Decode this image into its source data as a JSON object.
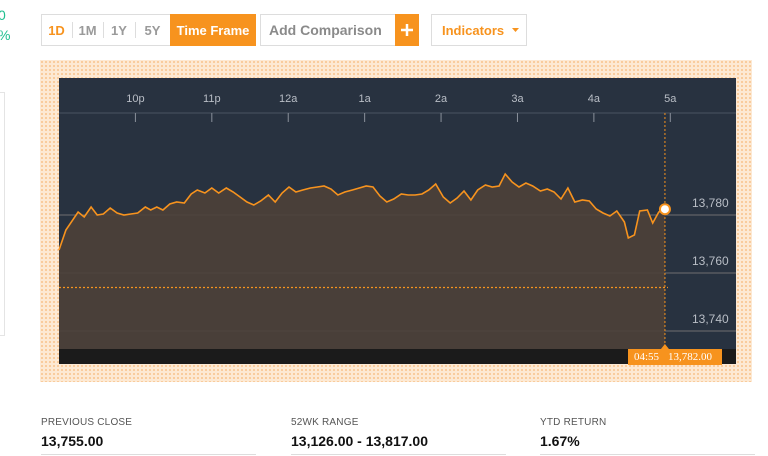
{
  "left_edge": [
    "0",
    "%"
  ],
  "toolbar": {
    "ranges": [
      "1D",
      "1M",
      "1Y",
      "5Y"
    ],
    "time_frame": "Time Frame",
    "comparison_placeholder": "Add Comparison",
    "indicators": "Indicators"
  },
  "chart_data": {
    "type": "area-line",
    "color": "#f7931e",
    "fill": "#4d4038",
    "grid": true,
    "x": [
      21.0,
      21.09,
      21.25,
      21.33,
      21.42,
      21.5,
      21.58,
      21.67,
      21.76,
      21.85,
      21.94,
      22.03,
      22.13,
      22.2,
      22.28,
      22.36,
      22.45,
      22.54,
      22.64,
      22.73,
      22.81,
      22.91,
      23.0,
      23.09,
      23.19,
      23.28,
      23.37,
      23.46,
      23.55,
      23.64,
      23.74,
      23.83,
      23.92,
      24.01,
      24.1,
      24.19,
      24.29,
      24.38,
      24.47,
      24.56,
      24.65,
      24.74,
      24.84,
      24.93,
      25.02,
      25.11,
      25.2,
      25.29,
      25.38,
      25.48,
      25.57,
      25.66,
      25.75,
      25.84,
      25.93,
      26.03,
      26.12,
      26.21,
      26.3,
      26.39,
      26.48,
      26.58,
      26.67,
      26.76,
      26.84,
      26.93,
      27.02,
      27.11,
      27.2,
      27.3,
      27.39,
      27.48,
      27.57,
      27.66,
      27.75,
      27.85,
      27.94,
      28.03,
      28.12,
      28.21,
      28.3,
      28.4,
      28.45,
      28.53,
      28.6,
      28.7,
      28.77,
      28.85,
      28.93
    ],
    "values": [
      13767.93,
      13774.83,
      13781.03,
      13779.31,
      13782.76,
      13780.0,
      13780.34,
      13782.41,
      13780.69,
      13780.0,
      13780.34,
      13780.69,
      13782.76,
      13781.72,
      13782.76,
      13781.72,
      13783.79,
      13784.48,
      13784.14,
      13787.24,
      13788.62,
      13787.59,
      13789.31,
      13787.59,
      13789.31,
      13787.93,
      13786.21,
      13784.48,
      13783.45,
      13784.83,
      13786.9,
      13784.48,
      13787.59,
      13789.66,
      13787.93,
      13788.62,
      13789.31,
      13789.66,
      13790.0,
      13788.97,
      13786.9,
      13787.93,
      13788.62,
      13789.31,
      13790.0,
      13789.66,
      13786.55,
      13784.48,
      13785.52,
      13787.24,
      13786.9,
      13786.9,
      13787.24,
      13788.62,
      13790.69,
      13786.21,
      13784.14,
      13785.86,
      13788.28,
      13785.17,
      13788.62,
      13790.34,
      13789.66,
      13790.0,
      13794.14,
      13791.38,
      13789.66,
      13791.03,
      13790.0,
      13788.28,
      13788.97,
      13787.93,
      13785.52,
      13789.31,
      13784.48,
      13785.17,
      13784.83,
      13782.07,
      13780.69,
      13779.66,
      13781.38,
      13777.59,
      13772.07,
      13773.1,
      13781.38,
      13781.72,
      13777.24,
      13781.03,
      13782
    ],
    "xlim": [
      21,
      29.86
    ],
    "xticks": [
      {
        "value": 22,
        "label": "10p"
      },
      {
        "value": 23,
        "label": "11p"
      },
      {
        "value": 24,
        "label": "12a"
      },
      {
        "value": 25,
        "label": "1a"
      },
      {
        "value": 26,
        "label": "2a"
      },
      {
        "value": 27,
        "label": "3a"
      },
      {
        "value": 28,
        "label": "4a"
      },
      {
        "value": 29,
        "label": "5a"
      }
    ],
    "ylim": [
      13733.79,
      13827.24
    ],
    "yticks": [
      {
        "value": 13740,
        "label": "13,740"
      },
      {
        "value": 13760,
        "label": "13,760"
      },
      {
        "value": 13780,
        "label": "13,780"
      }
    ],
    "previous_close": 13755,
    "cursor": {
      "time": "04:55",
      "price": "13,782.00"
    }
  },
  "stats": [
    {
      "label": "PREVIOUS CLOSE",
      "value": "13,755.00"
    },
    {
      "label": "52WK RANGE",
      "value": "13,126.00 - 13,817.00"
    },
    {
      "label": "YTD RETURN",
      "value": "1.67%"
    }
  ]
}
